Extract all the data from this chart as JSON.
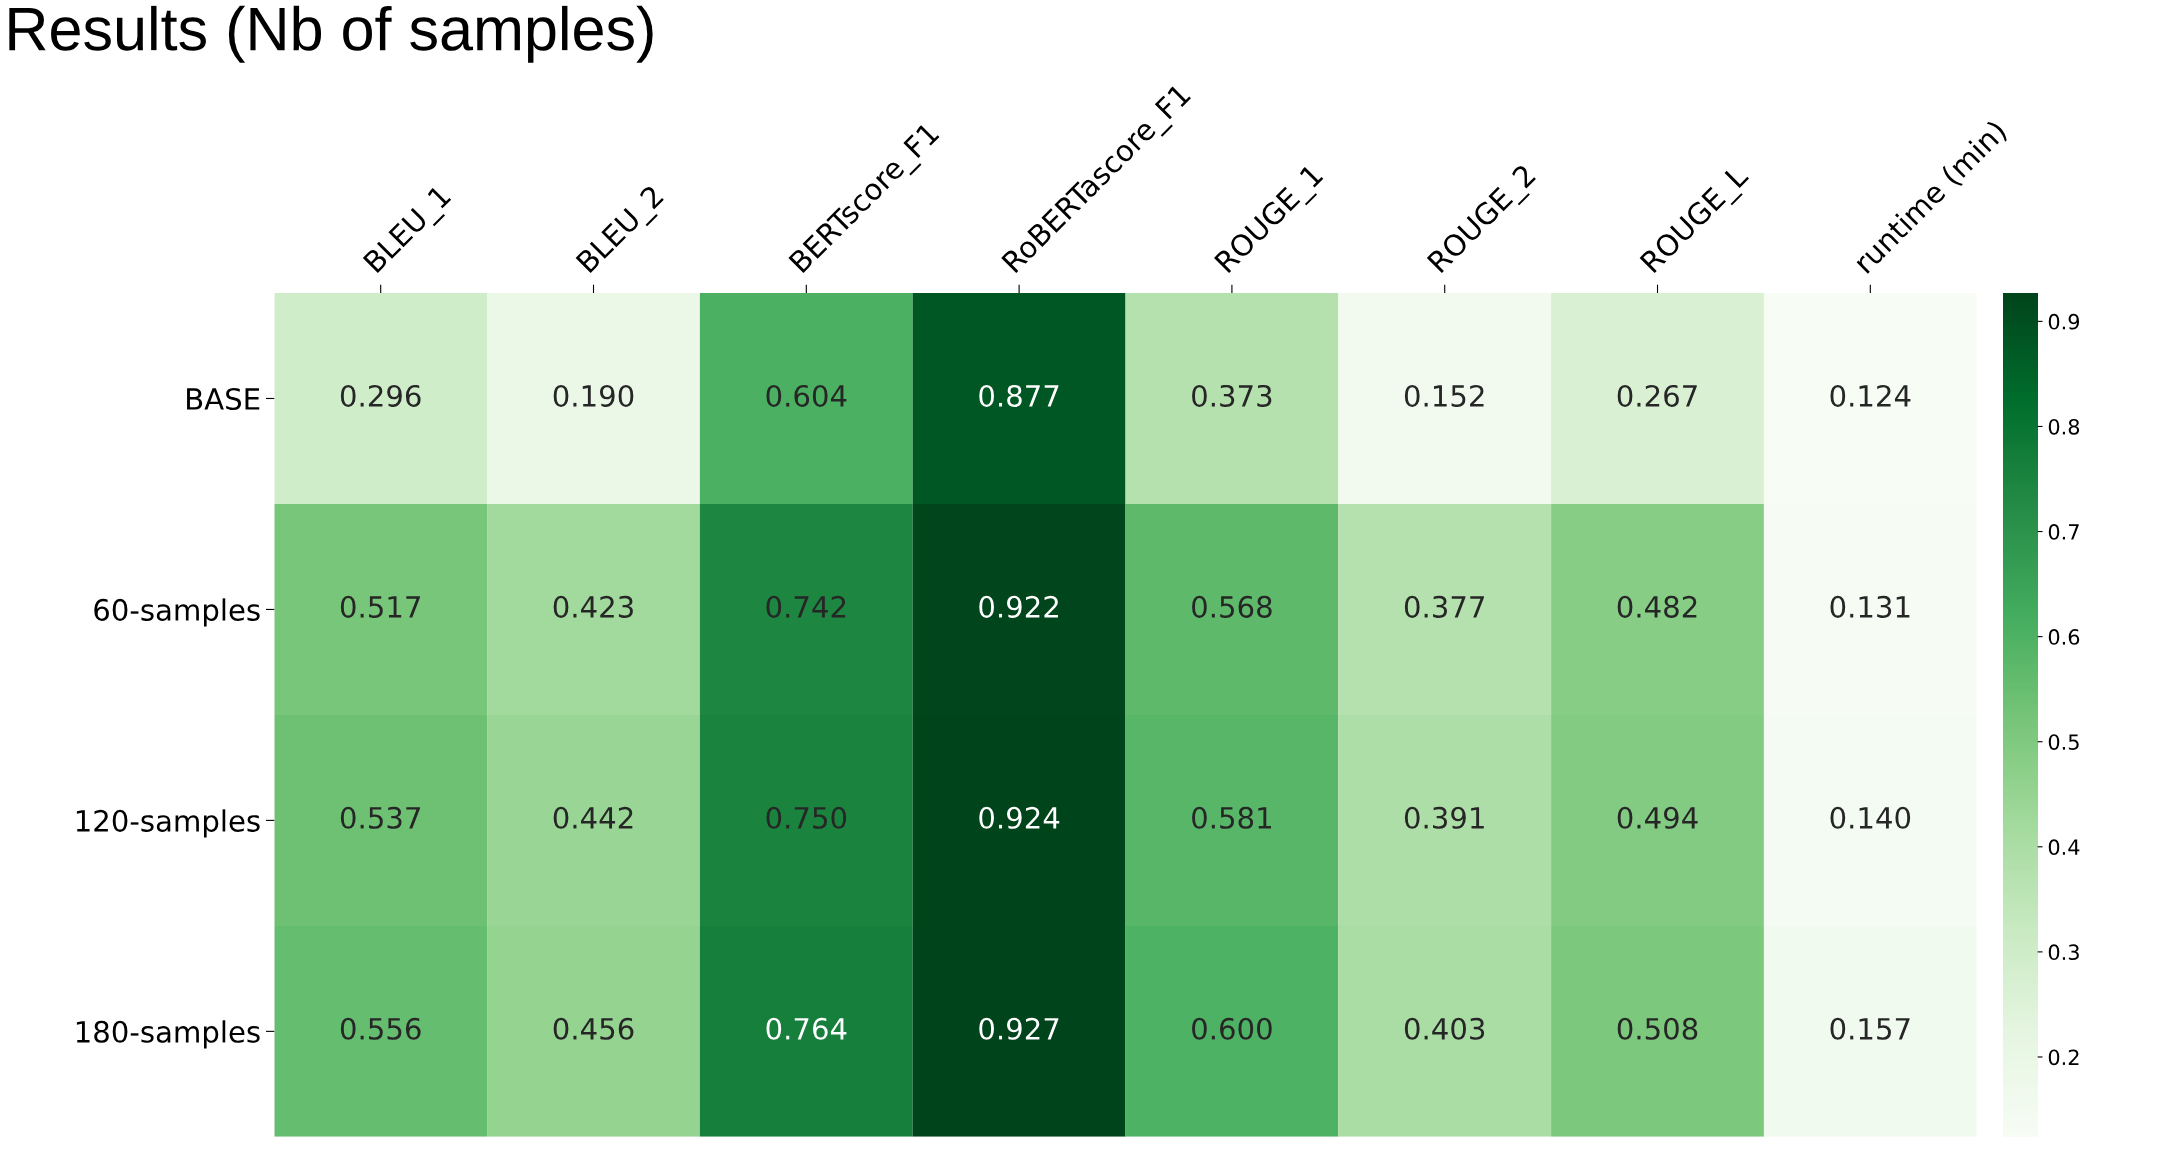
{
  "chart_data": {
    "type": "heatmap",
    "title": "Results (Nb of samples)",
    "categories": [
      "BLEU_1",
      "BLEU_2",
      "BERTscore_F1",
      "RoBERTascore_F1",
      "ROUGE_1",
      "ROUGE_2",
      "ROUGE_L",
      "runtime (min)"
    ],
    "y_categories": [
      "BASE",
      "60-samples",
      "120-samples",
      "180-samples"
    ],
    "cells": [
      [
        0.296,
        0.19,
        0.604,
        0.877,
        0.373,
        0.152,
        0.267,
        0.124
      ],
      [
        0.517,
        0.423,
        0.742,
        0.922,
        0.568,
        0.377,
        0.482,
        0.131
      ],
      [
        0.537,
        0.442,
        0.75,
        0.924,
        0.581,
        0.391,
        0.494,
        0.14
      ],
      [
        0.556,
        0.456,
        0.764,
        0.927,
        0.6,
        0.403,
        0.508,
        0.157
      ]
    ],
    "cell_labels": [
      [
        "0.296",
        "0.190",
        "0.604",
        "0.877",
        "0.373",
        "0.152",
        "0.267",
        "0.124"
      ],
      [
        "0.517",
        "0.423",
        "0.742",
        "0.922",
        "0.568",
        "0.377",
        "0.482",
        "0.131"
      ],
      [
        "0.537",
        "0.442",
        "0.750",
        "0.924",
        "0.581",
        "0.391",
        "0.494",
        "0.140"
      ],
      [
        "0.556",
        "0.456",
        "0.764",
        "0.927",
        "0.600",
        "0.403",
        "0.508",
        "0.157"
      ]
    ],
    "clim": [
      0.124,
      0.927
    ],
    "cticks": [
      0.2,
      0.3,
      0.4,
      0.5,
      0.6,
      0.7,
      0.8,
      0.9
    ]
  }
}
